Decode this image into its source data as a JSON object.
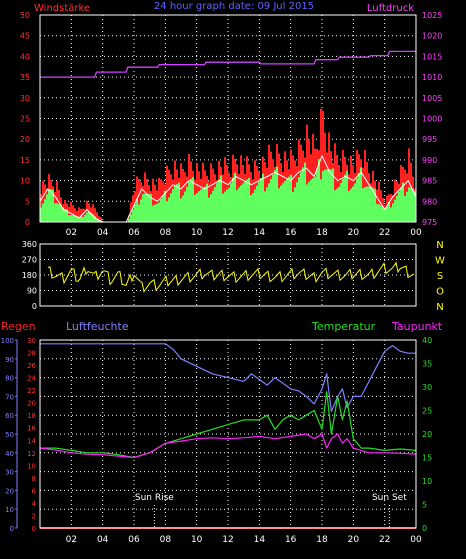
{
  "header": {
    "left": "Windstärke",
    "center": "24 hour graph date: 09 Jul 2015",
    "right": "Luftdruck"
  },
  "colors": {
    "grid": "#ffffff",
    "frame": "#ffffff",
    "axis_left": "#ff3030",
    "axis_right": "#ff40ff",
    "axis_time": "#ffffff",
    "wind_gust": "#ff2020",
    "wind_avg": "#ffffff",
    "wind_fill": "#60ff60",
    "pressure": "#d040ff",
    "direction": "#ffff00",
    "humidity": "#8080ff",
    "temperature": "#20e020",
    "dewpoint": "#ff20ff",
    "rain": "#ff2020",
    "label_regen": "#ff2020",
    "label_luftfeuchte": "#8080ff",
    "label_temperatur": "#20e020",
    "label_taupunkt": "#ff20ff",
    "sun": "#ffffff"
  },
  "chart_data": [
    {
      "type": "area",
      "title": "24 hour graph date: 09 Jul 2015",
      "time_ticks": [
        "02",
        "04",
        "06",
        "08",
        "10",
        "12",
        "14",
        "16",
        "18",
        "20",
        "22",
        "00"
      ],
      "y_left": {
        "label": "Windstärke",
        "ticks": [
          0,
          5,
          10,
          15,
          20,
          25,
          30,
          35,
          40,
          45,
          50
        ],
        "range": [
          0,
          50
        ]
      },
      "y_right": {
        "label": "Luftdruck",
        "ticks": [
          975,
          980,
          985,
          990,
          995,
          1000,
          1005,
          1010,
          1015,
          1020,
          1025
        ],
        "range": [
          975,
          1025
        ]
      },
      "x_range": [
        0,
        24
      ],
      "series": [
        {
          "name": "Windstärke",
          "x": [
            0.0,
            0.5,
            1.0,
            1.5,
            2.0,
            2.5,
            3.0,
            3.5,
            4.0,
            4.5,
            5.0,
            5.5,
            6.0,
            6.5,
            7.0,
            7.5,
            8.0,
            8.5,
            9.0,
            9.5,
            10.0,
            10.5,
            11.0,
            11.5,
            12.0,
            12.5,
            13.0,
            13.5,
            14.0,
            14.5,
            15.0,
            15.5,
            16.0,
            16.5,
            17.0,
            17.5,
            18.0,
            18.5,
            19.0,
            19.5,
            20.0,
            20.5,
            21.0,
            21.5,
            22.0,
            22.5,
            23.0,
            23.5,
            24.0
          ],
          "values": [
            5,
            8,
            6,
            3,
            2,
            1,
            3,
            1,
            0,
            0,
            0,
            0,
            4,
            8,
            6,
            5,
            7,
            9,
            8,
            10,
            9,
            8,
            9,
            10,
            9,
            11,
            10,
            9,
            10,
            11,
            12,
            11,
            10,
            12,
            13,
            11,
            16,
            12,
            10,
            11,
            10,
            12,
            9,
            6,
            3,
            6,
            8,
            10,
            6
          ]
        },
        {
          "name": "Windstärke Böe",
          "x": [
            0.0,
            0.5,
            1.0,
            1.5,
            2.0,
            2.5,
            3.0,
            3.5,
            4.0,
            4.5,
            5.0,
            5.5,
            6.0,
            6.5,
            7.0,
            7.5,
            8.0,
            8.5,
            9.0,
            9.5,
            10.0,
            10.5,
            11.0,
            11.5,
            12.0,
            12.5,
            13.0,
            13.5,
            14.0,
            14.5,
            15.0,
            15.5,
            16.0,
            16.5,
            17.0,
            17.5,
            18.0,
            18.5,
            19.0,
            19.5,
            20.0,
            20.5,
            21.0,
            21.5,
            22.0,
            22.5,
            23.0,
            23.5,
            24.0
          ],
          "values": [
            9,
            10,
            9,
            5,
            4,
            3,
            5,
            3,
            0,
            0,
            0,
            0,
            9,
            11,
            10,
            9,
            12,
            14,
            12,
            15,
            13,
            12,
            13,
            14,
            13,
            16,
            14,
            13,
            14,
            16,
            17,
            16,
            15,
            18,
            22,
            17,
            27,
            18,
            15,
            16,
            14,
            17,
            13,
            9,
            5,
            9,
            12,
            16,
            9
          ]
        },
        {
          "name": "Luftdruck",
          "x": [
            0,
            3.5,
            3.6,
            5.5,
            5.6,
            7.5,
            7.6,
            10.5,
            10.6,
            14,
            14.1,
            17.5,
            17.6,
            19,
            19.1,
            21,
            21.1,
            22.2,
            22.3,
            24
          ],
          "values": [
            1010.0,
            1010.0,
            1011.2,
            1011.2,
            1012.4,
            1012.4,
            1013.0,
            1013.0,
            1013.6,
            1013.6,
            1013.2,
            1013.2,
            1014.2,
            1014.2,
            1014.8,
            1014.8,
            1015.2,
            1015.2,
            1016.2,
            1016.2
          ]
        }
      ]
    },
    {
      "type": "line",
      "y_left": {
        "ticks": [
          0,
          90,
          180,
          270,
          360
        ],
        "range": [
          0,
          360
        ]
      },
      "y_right_labels": [
        "N",
        "W",
        "S",
        "O",
        "N"
      ],
      "x_range": [
        0,
        24
      ],
      "series": [
        {
          "name": "Windrichtung",
          "x": [
            0.0,
            0.5,
            1.0,
            1.5,
            2.0,
            2.5,
            3.0,
            3.5,
            4.0,
            4.5,
            5.0,
            5.5,
            6.0,
            6.5,
            7.0,
            7.5,
            8.0,
            8.5,
            9.0,
            9.5,
            10.0,
            10.5,
            11.0,
            11.5,
            12.0,
            12.5,
            13.0,
            13.5,
            14.0,
            14.5,
            15.0,
            15.5,
            16.0,
            16.5,
            17.0,
            17.5,
            18.0,
            18.5,
            19.0,
            19.5,
            20.0,
            20.5,
            21.0,
            21.5,
            22.0,
            22.5,
            23.0,
            23.5,
            24.0
          ],
          "values": [
            190,
            210,
            180,
            160,
            200,
            150,
            230,
            170,
            210,
            150,
            180,
            120,
            200,
            110,
            130,
            120,
            140,
            150,
            160,
            170,
            180,
            190,
            175,
            185,
            180,
            170,
            175,
            180,
            185,
            180,
            170,
            175,
            185,
            190,
            180,
            170,
            195,
            190,
            180,
            175,
            185,
            190,
            180,
            200,
            220,
            210,
            230,
            200,
            180
          ]
        }
      ]
    },
    {
      "type": "line",
      "labels": {
        "regen": "Regen",
        "luftfeuchte": "Luftfeuchte",
        "temperatur": "Temperatur",
        "taupunkt": "Taupunkt"
      },
      "y_left_humidity": {
        "ticks": [
          0,
          10,
          20,
          30,
          40,
          50,
          60,
          70,
          80,
          90,
          100
        ],
        "range": [
          0,
          100
        ]
      },
      "y_left_rain": {
        "ticks": [
          0,
          2,
          4,
          6,
          8,
          10,
          12,
          14,
          16,
          18,
          20,
          22,
          24,
          26,
          28,
          30
        ],
        "range": [
          0,
          30
        ]
      },
      "y_right": {
        "ticks": [
          0,
          5,
          10,
          15,
          20,
          25,
          30,
          35,
          40
        ],
        "range": [
          0,
          40
        ]
      },
      "x_range": [
        0,
        24
      ],
      "annotations": [
        {
          "text": "Sun Rise",
          "x": 7.3
        },
        {
          "text": "Sun Set",
          "x": 22.3
        }
      ],
      "series": [
        {
          "name": "Luftfeuchte",
          "axis": "humidity",
          "x": [
            0,
            1,
            2,
            3,
            4,
            5,
            6,
            7,
            8,
            8.5,
            9,
            10,
            11,
            12,
            13,
            13.5,
            14,
            14.5,
            15,
            15.5,
            16,
            16.5,
            17,
            17.5,
            18,
            18.3,
            18.6,
            19,
            19.3,
            19.6,
            20,
            20.5,
            21,
            21.5,
            22,
            22.5,
            23,
            23.5,
            24
          ],
          "values": [
            98,
            98,
            98,
            98,
            98,
            98,
            98,
            98,
            98,
            95,
            90,
            86,
            82,
            80,
            78,
            82,
            79,
            76,
            80,
            77,
            74,
            73,
            70,
            66,
            74,
            82,
            62,
            70,
            74,
            64,
            70,
            70,
            78,
            86,
            94,
            97,
            94,
            93,
            93
          ]
        },
        {
          "name": "Temperatur",
          "axis": "right",
          "x": [
            0,
            1,
            2,
            3,
            4,
            5,
            6,
            7,
            8,
            9,
            10,
            11,
            12,
            13,
            14,
            14.5,
            15,
            15.5,
            16,
            16.5,
            17,
            17.5,
            18,
            18.3,
            18.6,
            19,
            19.3,
            19.6,
            20,
            20.5,
            21,
            22,
            23,
            24
          ],
          "values": [
            17,
            17,
            16.5,
            16,
            16,
            15.6,
            15,
            16,
            18,
            19,
            20,
            21,
            22,
            23,
            23,
            24,
            21,
            23,
            24,
            23,
            24,
            25,
            21,
            29,
            20,
            28,
            23,
            27,
            19,
            17,
            17,
            16.5,
            16.8,
            16.5
          ]
        },
        {
          "name": "Taupunkt",
          "axis": "right",
          "x": [
            0,
            1,
            2,
            3,
            4,
            5,
            6,
            7,
            8,
            9,
            10,
            11,
            12,
            13,
            14,
            15,
            16,
            17,
            17.5,
            18,
            18.3,
            18.6,
            19,
            19.3,
            19.6,
            20,
            20.5,
            21,
            22,
            23,
            24
          ],
          "values": [
            17,
            16.6,
            16,
            15.7,
            15.6,
            15.3,
            15,
            16,
            18,
            18.5,
            19,
            19.2,
            19,
            19.2,
            19.5,
            19,
            19.5,
            20,
            19,
            20,
            17,
            19,
            20,
            18,
            19,
            17,
            16.5,
            16,
            16,
            15.9,
            15.7
          ]
        },
        {
          "name": "Regen",
          "axis": "rain",
          "x": [
            0,
            24
          ],
          "values": [
            0,
            0
          ]
        }
      ]
    }
  ]
}
